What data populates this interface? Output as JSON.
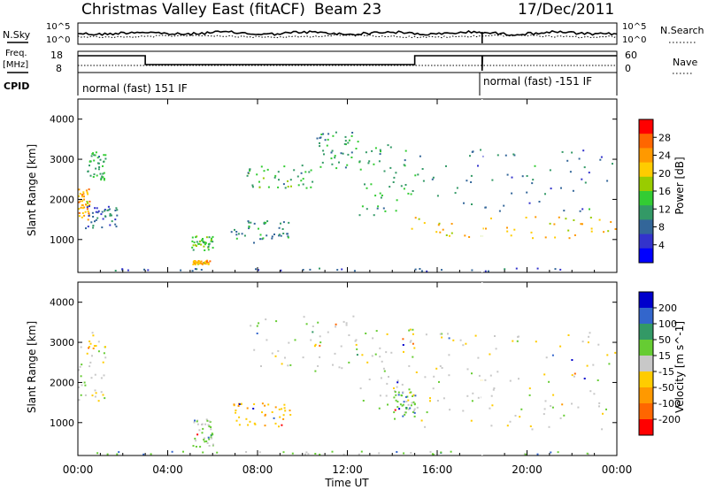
{
  "header": {
    "title": "Christmas Valley East (fitACF)",
    "beam": "Beam 23",
    "date": "17/Dec/2011"
  },
  "panels": {
    "nsky_label": "N.Sky",
    "nsearch_label": "N.Search",
    "log_ticks": [
      "10^5",
      "10^0"
    ],
    "right_log_ticks": [
      "10^5",
      "10^0"
    ],
    "freq_label": "Freq.",
    "freq_unit": "[MHz]",
    "freq_ticks": [
      "18",
      "8"
    ],
    "nave_label": "Nave",
    "nave_ticks": [
      "60",
      "0"
    ],
    "cpid_label": "CPID",
    "cpid_text_1": "normal (fast) 151 IF",
    "cpid_text_2": "normal (fast) -151 IF"
  },
  "chart_data": [
    {
      "type": "heatmap",
      "name": "power",
      "xlabel": "Time UT",
      "ylabel": "Slant Range [km]",
      "xlim": [
        0,
        24
      ],
      "ylim": [
        180,
        4500
      ],
      "y_ticks": [
        1000,
        2000,
        3000,
        4000
      ],
      "colorbar_label": "Power [dB]",
      "colorbar_ticks": [
        "28",
        "24",
        "20",
        "16",
        "12",
        "8",
        "4"
      ],
      "colorbar_colors": [
        "#ff0000",
        "#ff6600",
        "#ff9900",
        "#ffcc00",
        "#99cc00",
        "#33cc33",
        "#339966",
        "#336699",
        "#3333cc",
        "#0000ff"
      ],
      "features": [
        {
          "t0": 0.0,
          "t1": 0.5,
          "r0": 1500,
          "r1": 2300,
          "dB": 22
        },
        {
          "t0": 0.4,
          "t1": 1.2,
          "r0": 2500,
          "r1": 3200,
          "dB": 11
        },
        {
          "t0": 0.3,
          "t1": 1.8,
          "r0": 1300,
          "r1": 1900,
          "dB": 7
        },
        {
          "t0": 5.1,
          "t1": 5.9,
          "r0": 400,
          "r1": 500,
          "dB": 22
        },
        {
          "t0": 5.0,
          "t1": 6.0,
          "r0": 750,
          "r1": 1100,
          "dB": 13
        },
        {
          "t0": 6.8,
          "t1": 9.5,
          "r0": 900,
          "r1": 1500,
          "dB": 9
        },
        {
          "t0": 7.5,
          "t1": 10.5,
          "r0": 2300,
          "r1": 2900,
          "dB": 12
        },
        {
          "t0": 10.5,
          "t1": 12.5,
          "r0": 2800,
          "r1": 3700,
          "dB": 10
        },
        {
          "t0": 12.5,
          "t1": 15.0,
          "r0": 1600,
          "r1": 3400,
          "dB": 11
        },
        {
          "t0": 14.8,
          "t1": 24.0,
          "r0": 1050,
          "r1": 1600,
          "dB": 21
        },
        {
          "t0": 15.0,
          "t1": 24.0,
          "r0": 1700,
          "r1": 3300,
          "dB": 8
        },
        {
          "t0": 0.0,
          "t1": 24.0,
          "r0": 200,
          "r1": 300,
          "dB": 6
        }
      ]
    },
    {
      "type": "heatmap",
      "name": "velocity",
      "xlabel": "Time UT",
      "ylabel": "Slant Range [km]",
      "xlim": [
        0,
        24
      ],
      "ylim": [
        180,
        4500
      ],
      "x_ticks": [
        "00:00",
        "04:00",
        "08:00",
        "12:00",
        "16:00",
        "20:00",
        "00:00"
      ],
      "y_ticks": [
        1000,
        2000,
        3000,
        4000
      ],
      "colorbar_label": "Velocity [m s^-1]",
      "colorbar_ticks": [
        "200",
        "100",
        "50",
        "15",
        "-15",
        "-50",
        "-100",
        "-200"
      ],
      "colorbar_colors": [
        "#0000cc",
        "#3366cc",
        "#339966",
        "#66cc33",
        "#c8c8c8",
        "#ffcc00",
        "#ff9900",
        "#ff6600",
        "#ff0000"
      ],
      "features": [
        {
          "t0": 0.0,
          "t1": 1.2,
          "r0": 1500,
          "r1": 3300,
          "v": 0
        },
        {
          "t0": 5.1,
          "t1": 6.0,
          "r0": 400,
          "r1": 1100,
          "v": 30
        },
        {
          "t0": 6.8,
          "t1": 9.5,
          "r0": 900,
          "r1": 1500,
          "v": -40
        },
        {
          "t0": 7.5,
          "t1": 12.5,
          "r0": 2300,
          "r1": 3700,
          "v": 0
        },
        {
          "t0": 12.5,
          "t1": 15.0,
          "r0": 1300,
          "r1": 3400,
          "v": 5
        },
        {
          "t0": 14.0,
          "t1": 15.0,
          "r0": 1100,
          "r1": 1800,
          "v": 40
        },
        {
          "t0": 14.8,
          "t1": 24.0,
          "r0": 850,
          "r1": 1900,
          "v": 0
        },
        {
          "t0": 15.0,
          "t1": 24.0,
          "r0": 2000,
          "r1": 3300,
          "v": 0
        },
        {
          "t0": 0.0,
          "t1": 24.0,
          "r0": 200,
          "r1": 300,
          "v": 30
        }
      ]
    }
  ]
}
